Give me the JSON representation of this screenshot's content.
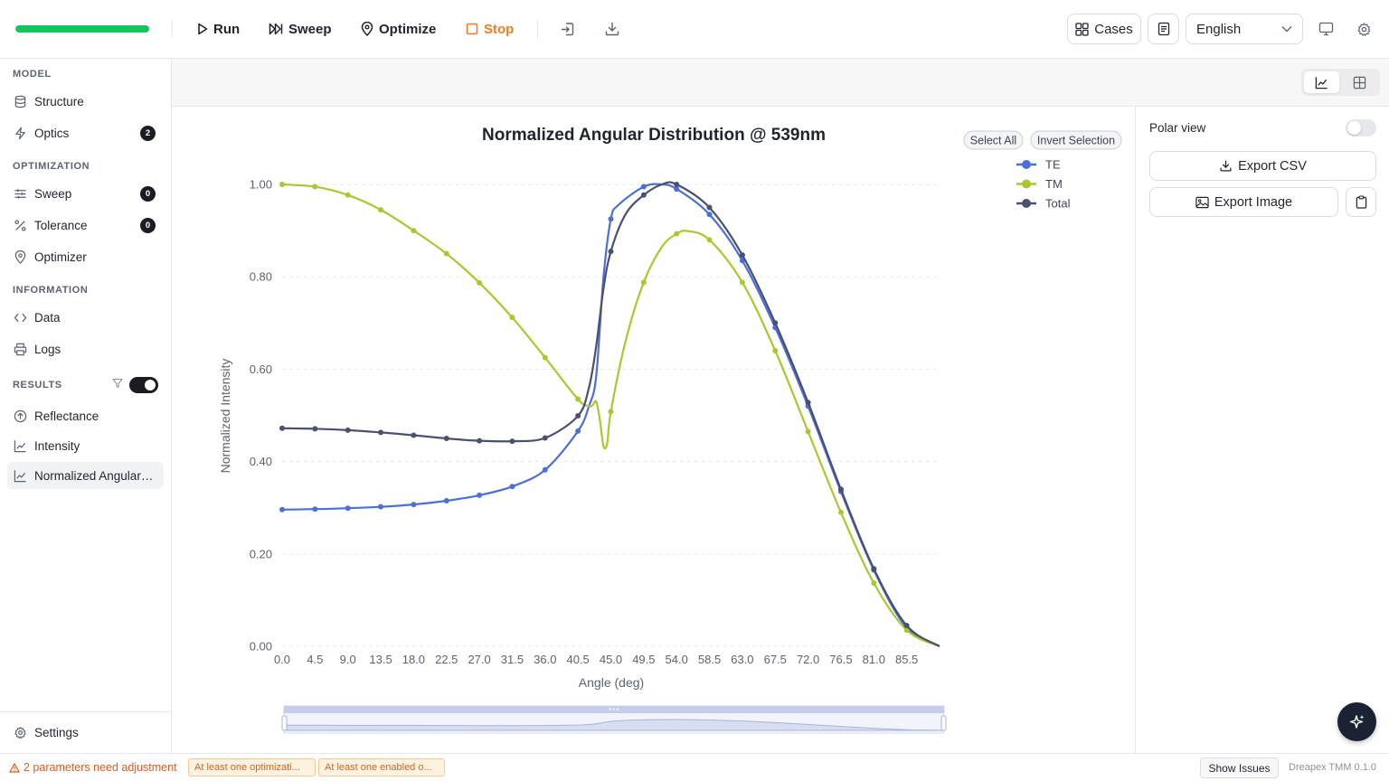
{
  "toolbar": {
    "progress": 1.0,
    "progress_color": "#14c55b",
    "run_label": "Run",
    "sweep_label": "Sweep",
    "optimize_label": "Optimize",
    "stop_label": "Stop",
    "cases_label": "Cases",
    "language": "English"
  },
  "sidebar": {
    "model_header": "MODEL",
    "structure": "Structure",
    "optics": "Optics",
    "optics_badge": "2",
    "optimization_header": "OPTIMIZATION",
    "sweep": "Sweep",
    "sweep_badge": "0",
    "tolerance": "Tolerance",
    "tolerance_badge": "0",
    "optimizer": "Optimizer",
    "information_header": "INFORMATION",
    "data": "Data",
    "logs": "Logs",
    "results_header": "RESULTS",
    "results_toggle": true,
    "reflectance": "Reflectance",
    "intensity": "Intensity",
    "normalized_angular": "Normalized Angular Distribution",
    "settings": "Settings"
  },
  "chart_panel": {
    "select_all": "Select All",
    "invert_selection": "Invert Selection"
  },
  "right_panel": {
    "polar_view_label": "Polar view",
    "polar_view_on": false,
    "export_csv": "Export CSV",
    "export_image": "Export Image"
  },
  "statusbar": {
    "warning": "2 parameters need adjustment",
    "chip1": "At least one optimizati...",
    "chip2": "At least one enabled o...",
    "show_issues": "Show Issues",
    "version": "Dreapex TMM 0.1.0"
  },
  "chart_data": {
    "type": "line",
    "title": "Normalized Angular Distribution @ 539nm",
    "xlabel": "Angle (deg)",
    "ylabel": "Normalized Intensity",
    "xlim": [
      0,
      90
    ],
    "ylim": [
      0,
      1
    ],
    "x_ticks": [
      "0.0",
      "4.5",
      "9.0",
      "13.5",
      "18.0",
      "22.5",
      "27.0",
      "31.5",
      "36.0",
      "40.5",
      "45.0",
      "49.5",
      "54.0",
      "58.5",
      "63.0",
      "67.5",
      "72.0",
      "76.5",
      "81.0",
      "85.5"
    ],
    "y_ticks": [
      "0.00",
      "0.20",
      "0.40",
      "0.60",
      "0.80",
      "1.00"
    ],
    "legend": "top-right",
    "grid": true,
    "series": [
      {
        "name": "TE",
        "color": "#4a6fd8",
        "x": [
          0,
          4.5,
          9,
          13.5,
          18,
          22.5,
          27,
          31.5,
          36,
          40.5,
          42,
          43,
          44,
          45,
          46,
          49.5,
          52,
          54,
          58.5,
          63,
          67.5,
          72,
          76.5,
          81,
          85.5,
          90
        ],
        "y": [
          0.296,
          0.297,
          0.299,
          0.302,
          0.307,
          0.315,
          0.327,
          0.346,
          0.382,
          0.466,
          0.52,
          0.585,
          0.8,
          0.925,
          0.955,
          0.995,
          1.0,
          0.99,
          0.935,
          0.835,
          0.69,
          0.52,
          0.335,
          0.165,
          0.04,
          0.0
        ],
        "markers_x": [
          0,
          4.5,
          9,
          13.5,
          18,
          22.5,
          27,
          31.5,
          36,
          40.5,
          45,
          49.5,
          54,
          58.5,
          63,
          67.5,
          72,
          76.5,
          81,
          85.5
        ]
      },
      {
        "name": "TM",
        "color": "#a8c92d",
        "x": [
          0,
          4.5,
          9,
          13.5,
          18,
          22.5,
          27,
          31.5,
          36,
          40.5,
          42,
          42.5,
          43,
          43.5,
          44,
          44.5,
          45,
          47,
          49.5,
          52,
          54,
          55.5,
          58.5,
          63,
          67.5,
          72,
          76.5,
          81,
          85.5,
          90
        ],
        "y": [
          1.0,
          0.995,
          0.977,
          0.945,
          0.9,
          0.85,
          0.787,
          0.712,
          0.625,
          0.535,
          0.52,
          0.522,
          0.53,
          0.49,
          0.433,
          0.44,
          0.508,
          0.66,
          0.788,
          0.865,
          0.893,
          0.899,
          0.88,
          0.788,
          0.64,
          0.465,
          0.29,
          0.137,
          0.035,
          0.0
        ],
        "markers_x": [
          0,
          4.5,
          9,
          13.5,
          18,
          22.5,
          27,
          31.5,
          36,
          40.5,
          45,
          49.5,
          54,
          58.5,
          63,
          67.5,
          72,
          76.5,
          81,
          85.5
        ]
      },
      {
        "name": "Total",
        "color": "#4a5070",
        "x": [
          0,
          4.5,
          9,
          13.5,
          18,
          22.5,
          27,
          31.5,
          36,
          40.5,
          42,
          43,
          44,
          45,
          47,
          49.5,
          52,
          54,
          58.5,
          63,
          67.5,
          72,
          76.5,
          81,
          85.5,
          90
        ],
        "y": [
          0.472,
          0.471,
          0.468,
          0.463,
          0.457,
          0.45,
          0.445,
          0.444,
          0.451,
          0.499,
          0.56,
          0.65,
          0.775,
          0.855,
          0.935,
          0.977,
          1.0,
          1.0,
          0.95,
          0.847,
          0.7,
          0.528,
          0.34,
          0.168,
          0.045,
          0.0
        ],
        "markers_x": [
          0,
          4.5,
          9,
          13.5,
          18,
          22.5,
          27,
          31.5,
          36,
          40.5,
          45,
          49.5,
          54,
          58.5,
          63,
          67.5,
          72,
          76.5,
          81,
          85.5
        ]
      }
    ]
  }
}
